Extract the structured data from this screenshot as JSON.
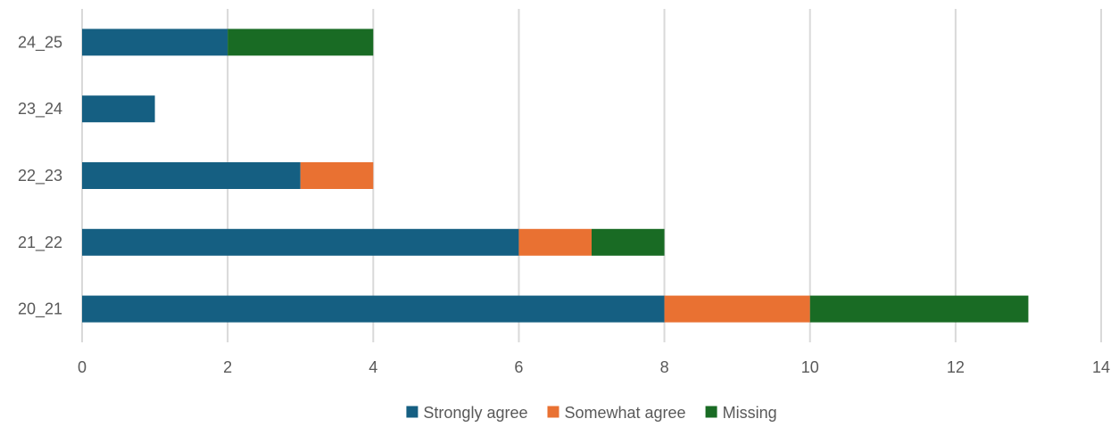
{
  "chart_data": {
    "type": "bar",
    "orientation": "horizontal",
    "stacked": true,
    "title": "",
    "xlabel": "",
    "ylabel": "",
    "categories": [
      "24_25",
      "23_24",
      "22_23",
      "21_22",
      "20_21"
    ],
    "series": [
      {
        "name": "Strongly agree",
        "color": "#155F82",
        "values": [
          2,
          1,
          3,
          6,
          8
        ]
      },
      {
        "name": "Somewhat agree",
        "color": "#E97132",
        "values": [
          0,
          0,
          1,
          1,
          2
        ]
      },
      {
        "name": "Missing",
        "color": "#196B24",
        "values": [
          2,
          0,
          0,
          1,
          3
        ]
      }
    ],
    "xlim": [
      0,
      14
    ],
    "xticks": [
      "0",
      "2",
      "4",
      "6",
      "8",
      "10",
      "12",
      "14"
    ],
    "grid": "vertical",
    "legend": "bottom"
  }
}
